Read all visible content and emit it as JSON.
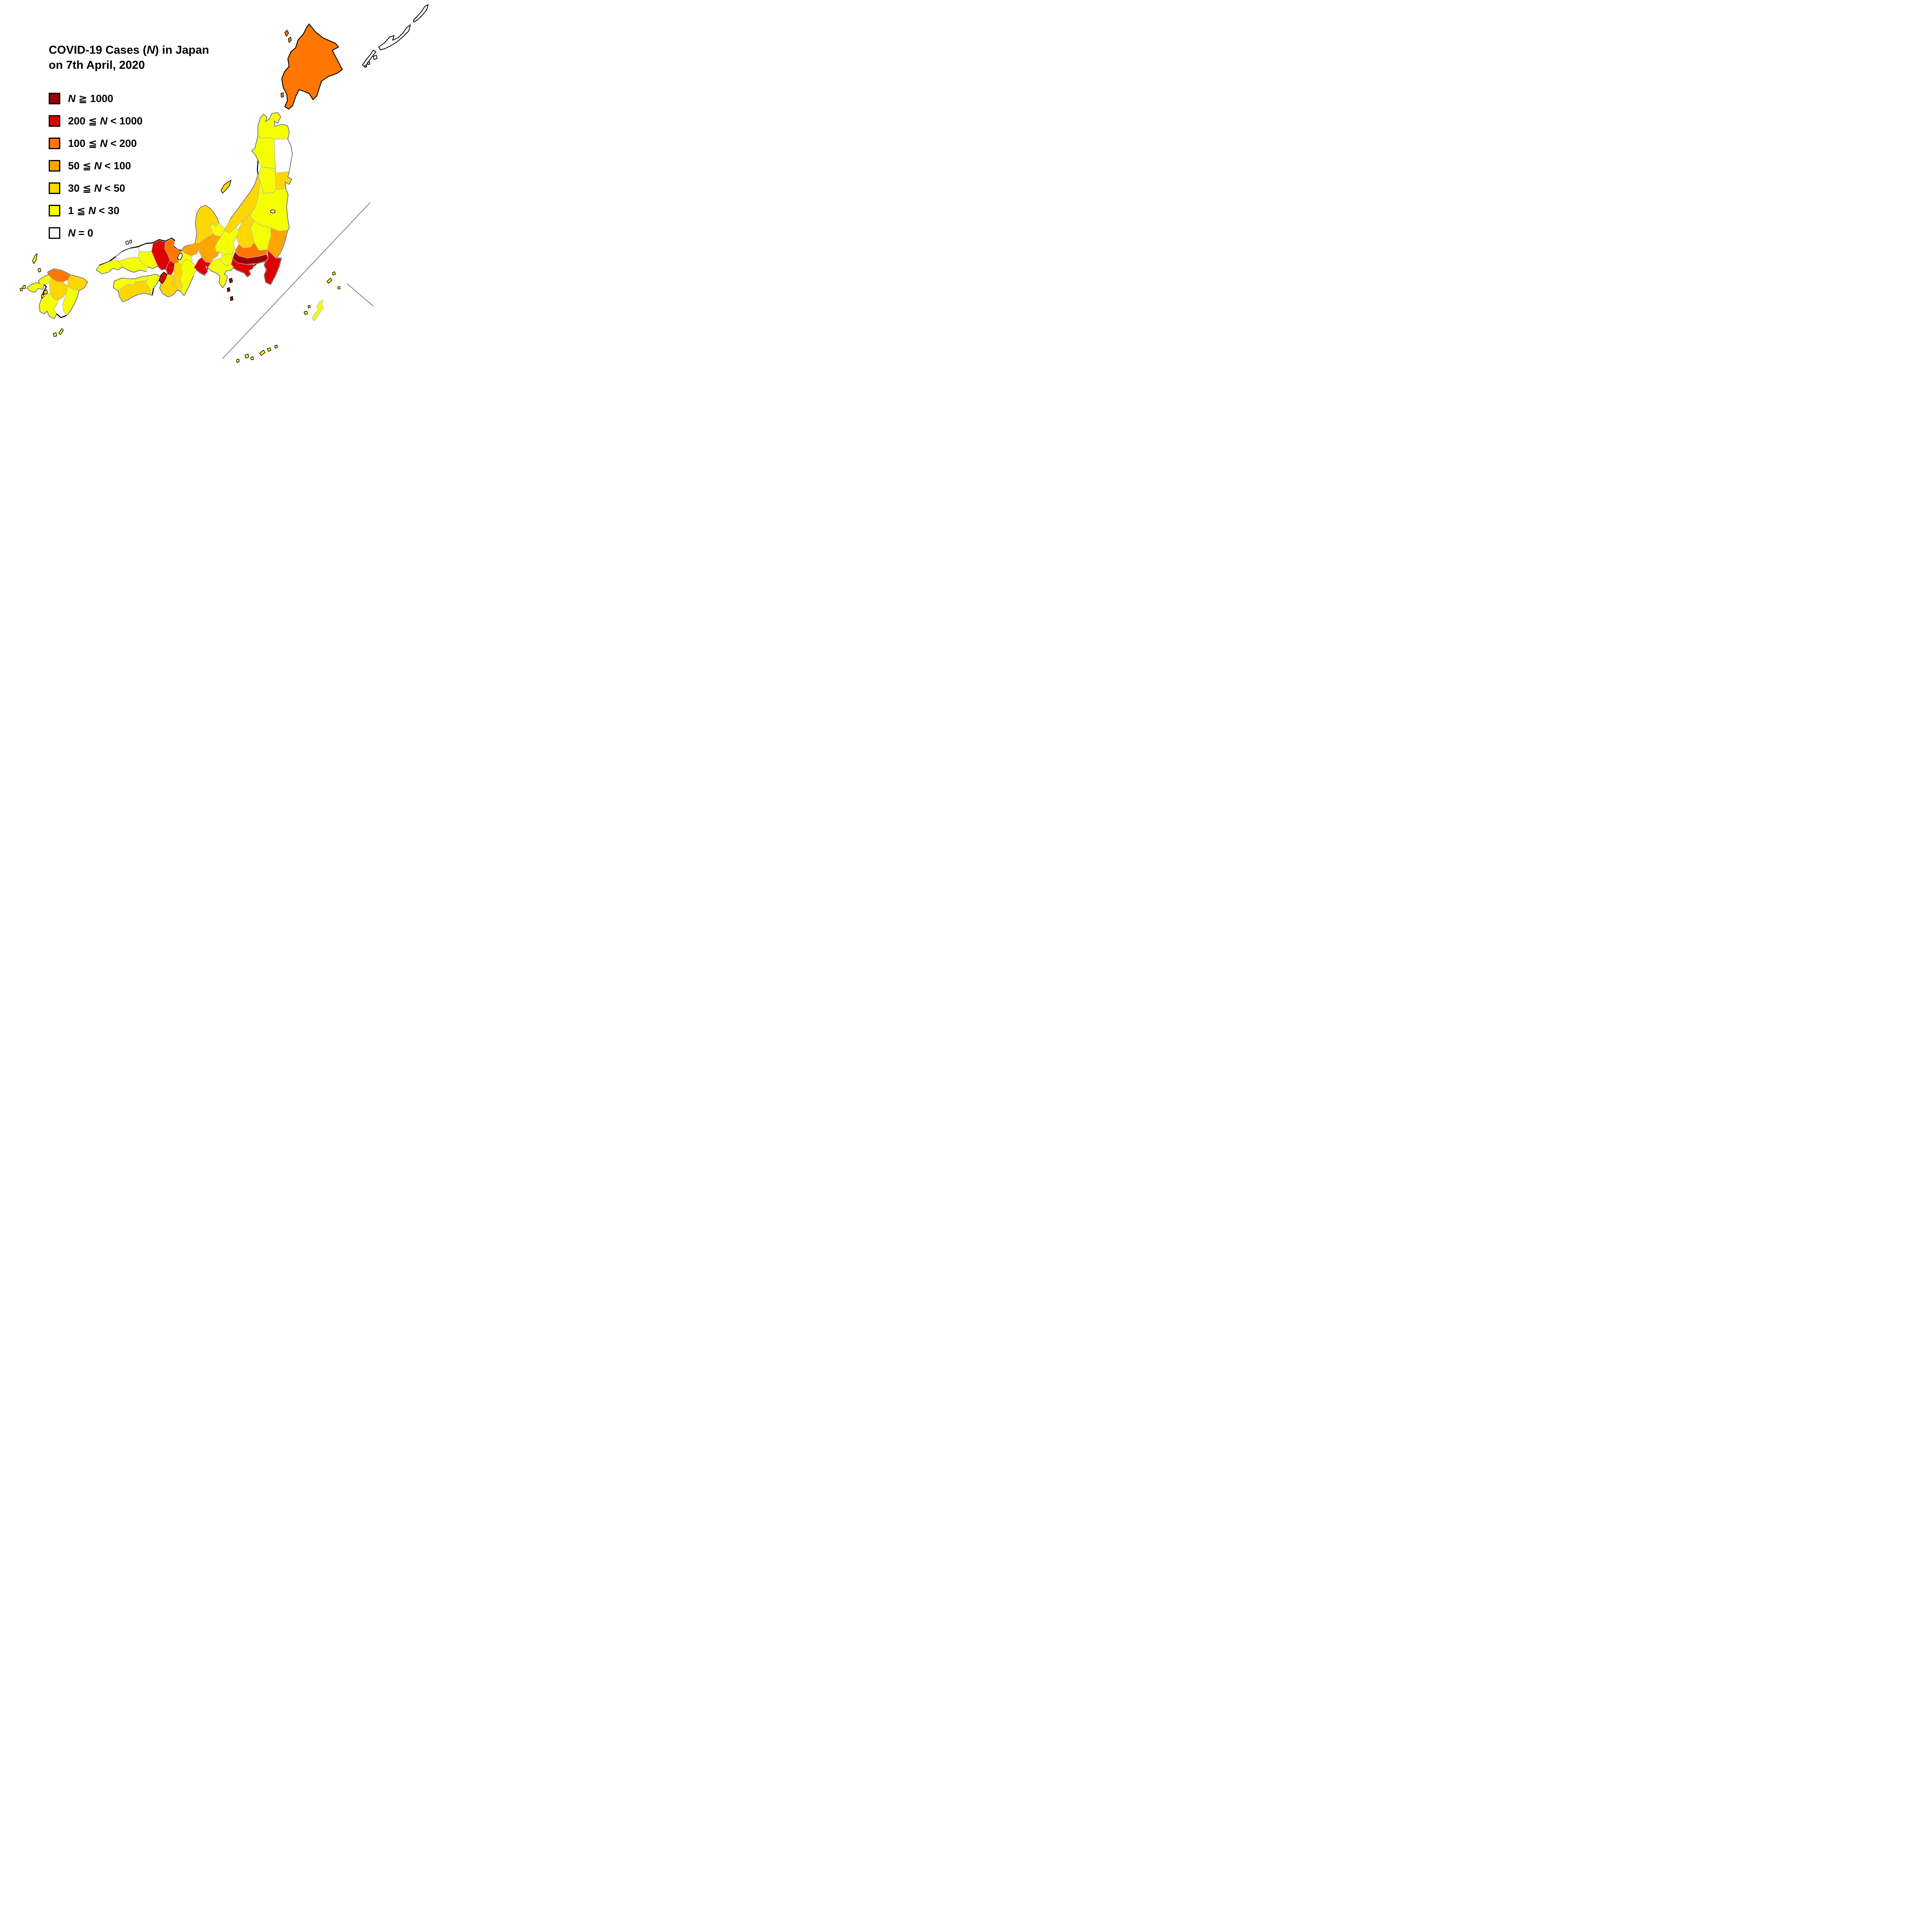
{
  "title": {
    "pre": "COVID-19 Cases (",
    "variable": "N",
    "post": ") in Japan",
    "line2": "on 7th April, 2020"
  },
  "legend": {
    "variable": "N",
    "items": [
      {
        "id": "c1",
        "pre": "",
        "post": " ≧ 1000",
        "color": "#9B0000"
      },
      {
        "id": "c2",
        "pre": "200 ≦ ",
        "post": " < 1000",
        "color": "#DD0000"
      },
      {
        "id": "c3",
        "pre": "100 ≦ ",
        "post": " < 200",
        "color": "#FF7700"
      },
      {
        "id": "c4",
        "pre": "50 ≦ ",
        "post": " < 100",
        "color": "#FFA500"
      },
      {
        "id": "c5",
        "pre": "30 ≦ ",
        "post": " < 50",
        "color": "#FFD700"
      },
      {
        "id": "c6",
        "pre": "1 ≦ ",
        "post": " < 30",
        "color": "#F5FF00"
      },
      {
        "id": "c7",
        "pre": "",
        "post": " = 0",
        "color": "#FFFFFF"
      }
    ]
  },
  "map": {
    "regions": [
      {
        "id": "hokkaido",
        "name": "Hokkaido",
        "category": "c3"
      },
      {
        "id": "aomori",
        "name": "Aomori",
        "category": "c6"
      },
      {
        "id": "iwate",
        "name": "Iwate",
        "category": "c7"
      },
      {
        "id": "akita",
        "name": "Akita",
        "category": "c6"
      },
      {
        "id": "miyagi",
        "name": "Miyagi",
        "category": "c5"
      },
      {
        "id": "yamagata",
        "name": "Yamagata",
        "category": "c6"
      },
      {
        "id": "fukushima",
        "name": "Fukushima",
        "category": "c6"
      },
      {
        "id": "niigata",
        "name": "Niigata",
        "category": "c5"
      },
      {
        "id": "tochigi",
        "name": "Tochigi",
        "category": "c6"
      },
      {
        "id": "gunma",
        "name": "Gunma",
        "category": "c5"
      },
      {
        "id": "ibaraki",
        "name": "Ibaraki",
        "category": "c4"
      },
      {
        "id": "saitama",
        "name": "Saitama",
        "category": "c3"
      },
      {
        "id": "tokyo",
        "name": "Tokyo",
        "category": "c1"
      },
      {
        "id": "chiba",
        "name": "Chiba",
        "category": "c2"
      },
      {
        "id": "kanagawa",
        "name": "Kanagawa",
        "category": "c2"
      },
      {
        "id": "yamanashi",
        "name": "Yamanashi",
        "category": "c6"
      },
      {
        "id": "nagano",
        "name": "Nagano",
        "category": "c6"
      },
      {
        "id": "toyama",
        "name": "Toyama",
        "category": "c6"
      },
      {
        "id": "ishikawa",
        "name": "Ishikawa",
        "category": "c5"
      },
      {
        "id": "fukui",
        "name": "Fukui",
        "category": "c4"
      },
      {
        "id": "gifu",
        "name": "Gifu",
        "category": "c4"
      },
      {
        "id": "shizuoka",
        "name": "Shizuoka",
        "category": "c6"
      },
      {
        "id": "aichi",
        "name": "Aichi",
        "category": "c2"
      },
      {
        "id": "mie",
        "name": "Mie",
        "category": "c6"
      },
      {
        "id": "shiga",
        "name": "Shiga",
        "category": "c6"
      },
      {
        "id": "kyoto",
        "name": "Kyoto",
        "category": "c3"
      },
      {
        "id": "osaka",
        "name": "Osaka",
        "category": "c2"
      },
      {
        "id": "nara",
        "name": "Nara",
        "category": "c5"
      },
      {
        "id": "wakayama",
        "name": "Wakayama",
        "category": "c5"
      },
      {
        "id": "hyogo",
        "name": "Hyogo",
        "category": "c2"
      },
      {
        "id": "tottori",
        "name": "Tottori",
        "category": "c7"
      },
      {
        "id": "okayama",
        "name": "Okayama",
        "category": "c6"
      },
      {
        "id": "shimane",
        "name": "Shimane",
        "category": "c7"
      },
      {
        "id": "hiroshima",
        "name": "Hiroshima",
        "category": "c6"
      },
      {
        "id": "yamaguchi",
        "name": "Yamaguchi",
        "category": "c6"
      },
      {
        "id": "kagawa",
        "name": "Kagawa",
        "category": "c6"
      },
      {
        "id": "tokushima",
        "name": "Tokushima",
        "category": "c6"
      },
      {
        "id": "ehime",
        "name": "Ehime",
        "category": "c6"
      },
      {
        "id": "kochi",
        "name": "Kochi",
        "category": "c5"
      },
      {
        "id": "fukuoka",
        "name": "Fukuoka",
        "category": "c3"
      },
      {
        "id": "saga",
        "name": "Saga",
        "category": "c6"
      },
      {
        "id": "nagasaki",
        "name": "Nagasaki",
        "category": "c6"
      },
      {
        "id": "oita",
        "name": "Oita",
        "category": "c5"
      },
      {
        "id": "kumamoto",
        "name": "Kumamoto",
        "category": "c5"
      },
      {
        "id": "miyazaki",
        "name": "Miyazaki",
        "category": "c6"
      },
      {
        "id": "kagoshima",
        "name": "Kagoshima",
        "category": "c6"
      },
      {
        "id": "okinawa",
        "name": "Okinawa",
        "category": "c6"
      }
    ]
  }
}
